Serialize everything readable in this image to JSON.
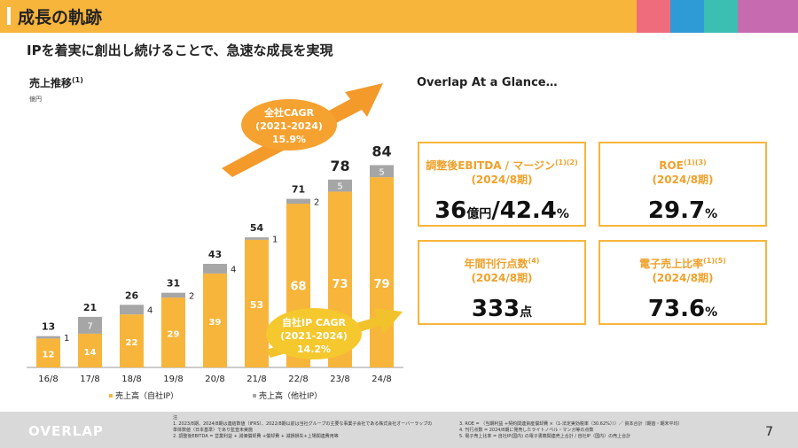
{
  "header": {
    "title": "成長の軌跡",
    "accent_colors": [
      "#F8B53B",
      "#EF6C7C",
      "#2E9BD6",
      "#3BBFB3",
      "#C66BB0"
    ]
  },
  "subtitle": "IPを着実に創出し続けることで、急速な成長を実現",
  "chart_section": {
    "title": "売上推移",
    "title_note": "(1)",
    "unit": "億円",
    "cagr_total": {
      "label": "全社CAGR",
      "period": "(2021-2024)",
      "value": "15.9%"
    },
    "cagr_own": {
      "label": "自社IP CAGR",
      "period": "(2021-2024)",
      "value": "14.2%"
    }
  },
  "chart_data": {
    "type": "bar",
    "stacked": true,
    "categories": [
      "16/8",
      "17/8",
      "18/8",
      "19/8",
      "20/8",
      "21/8",
      "22/8",
      "23/8",
      "24/8"
    ],
    "series": [
      {
        "name": "売上高（自社IP）",
        "color": "#F8B53B",
        "values": [
          12,
          14,
          22,
          29,
          39,
          53,
          68,
          73,
          79
        ]
      },
      {
        "name": "売上高（他社IP）",
        "color": "#A6A6A6",
        "values": [
          1,
          7,
          4,
          2,
          4,
          1,
          2,
          5,
          5
        ]
      }
    ],
    "totals": [
      13,
      21,
      26,
      31,
      43,
      54,
      71,
      78,
      84
    ],
    "legend_position": "bottom"
  },
  "glance": {
    "title": "Overlap At a Glance…",
    "cards": [
      {
        "label": "調整後EBITDA / マージン",
        "note": "(1)(2)",
        "period": "(2024/8期)",
        "value": "36",
        "unit1": "億円",
        "value2": "/42.4",
        "unit2": "%"
      },
      {
        "label": "ROE",
        "note": "(1)(3)",
        "period": "(2024/8期)",
        "value": "29.7",
        "unit1": "%",
        "value2": "",
        "unit2": ""
      },
      {
        "label": "年間刊行点数",
        "note": "(4)",
        "period": "(2024/8期)",
        "value": "333",
        "unit1": "点",
        "value2": "",
        "unit2": ""
      },
      {
        "label": "電子売上比率",
        "note": "(1)(5)",
        "period": "(2024/8期)",
        "value": "73.6",
        "unit1": "%",
        "value2": "",
        "unit2": ""
      }
    ]
  },
  "footer": {
    "logo": "OVERLAP",
    "notes_head": "注",
    "notes_left": [
      "1.  2023/8期、2024/8期は連結数値（IFRS）、2022/8期以前は当社グループの主要な事業子会社である株式会社オーバーラップの",
      "     単体数値（日本基準）であり監査未実施",
      "2.  調整後EBITDA = 営業利益 + 減価償却費 +償却費 + 減損損失+上場関連費用等"
    ],
    "notes_right": [
      "3.  ROE = （当期利益 +契約関連資産償却費 ×（1-法定実効税率（30.62%）））／ 資本合計（期首・期末平均）",
      "4.  刊行点数 = 2024/8期に発売したライトノベル・マンガ等の点数",
      "5.  電子売上比率 = 自社IP(国内) の電子書籍関連売上合計 / 自社IP（国内）の売上合計"
    ],
    "page_number": "7"
  }
}
